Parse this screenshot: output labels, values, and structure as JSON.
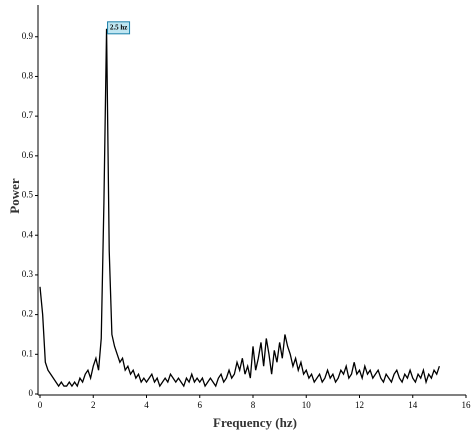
{
  "chart_data": {
    "type": "line",
    "x_label": "Frequency (hz)",
    "y_label": "Power",
    "annotation": "2.5 hz",
    "x": [
      0,
      0.1,
      0.2,
      0.3,
      0.4,
      0.5,
      0.6,
      0.7,
      0.8,
      0.9,
      1,
      1.1,
      1.2,
      1.3,
      1.4,
      1.5,
      1.6,
      1.7,
      1.8,
      1.9,
      2,
      2.1,
      2.2,
      2.3,
      2.4,
      2.5,
      2.6,
      2.7,
      2.8,
      2.9,
      3,
      3.1,
      3.2,
      3.3,
      3.4,
      3.5,
      3.6,
      3.7,
      3.8,
      3.9,
      4,
      4.1,
      4.2,
      4.3,
      4.4,
      4.5,
      4.6,
      4.7,
      4.8,
      4.9,
      5,
      5.1,
      5.2,
      5.3,
      5.4,
      5.5,
      5.6,
      5.7,
      5.8,
      5.9,
      6,
      6.1,
      6.2,
      6.3,
      6.4,
      6.5,
      6.6,
      6.7,
      6.8,
      6.9,
      7,
      7.1,
      7.2,
      7.3,
      7.4,
      7.5,
      7.6,
      7.7,
      7.8,
      7.9,
      8,
      8.1,
      8.2,
      8.3,
      8.4,
      8.5,
      8.6,
      8.7,
      8.8,
      8.9,
      9,
      9.1,
      9.2,
      9.3,
      9.4,
      9.5,
      9.6,
      9.7,
      9.8,
      9.9,
      10,
      10.1,
      10.2,
      10.3,
      10.4,
      10.5,
      10.6,
      10.7,
      10.8,
      10.9,
      11,
      11.1,
      11.2,
      11.3,
      11.4,
      11.5,
      11.6,
      11.7,
      11.8,
      11.9,
      12,
      12.1,
      12.2,
      12.3,
      12.4,
      12.5,
      12.6,
      12.7,
      12.8,
      12.9,
      13,
      13.1,
      13.2,
      13.3,
      13.4,
      13.5,
      13.6,
      13.7,
      13.8,
      13.9,
      14,
      14.1,
      14.2,
      14.3,
      14.4,
      14.5,
      14.6,
      14.7,
      14.8,
      14.9,
      15
    ],
    "series": [
      {
        "color": "#000000",
        "values": [
          0.27,
          0.2,
          0.08,
          0.06,
          0.05,
          0.04,
          0.03,
          0.02,
          0.03,
          0.02,
          0.02,
          0.03,
          0.02,
          0.03,
          0.02,
          0.04,
          0.03,
          0.05,
          0.06,
          0.04,
          0.07,
          0.09,
          0.06,
          0.14,
          0.48,
          0.92,
          0.36,
          0.15,
          0.12,
          0.1,
          0.08,
          0.09,
          0.06,
          0.07,
          0.05,
          0.06,
          0.04,
          0.05,
          0.03,
          0.04,
          0.03,
          0.04,
          0.05,
          0.03,
          0.04,
          0.02,
          0.03,
          0.04,
          0.03,
          0.05,
          0.04,
          0.03,
          0.04,
          0.03,
          0.02,
          0.04,
          0.03,
          0.05,
          0.03,
          0.04,
          0.03,
          0.04,
          0.02,
          0.03,
          0.04,
          0.03,
          0.02,
          0.04,
          0.05,
          0.03,
          0.04,
          0.06,
          0.04,
          0.05,
          0.08,
          0.06,
          0.09,
          0.05,
          0.07,
          0.04,
          0.12,
          0.06,
          0.09,
          0.13,
          0.07,
          0.14,
          0.1,
          0.05,
          0.11,
          0.08,
          0.13,
          0.09,
          0.15,
          0.12,
          0.1,
          0.07,
          0.09,
          0.06,
          0.08,
          0.05,
          0.06,
          0.04,
          0.05,
          0.03,
          0.04,
          0.05,
          0.03,
          0.04,
          0.06,
          0.04,
          0.05,
          0.03,
          0.04,
          0.06,
          0.05,
          0.07,
          0.04,
          0.05,
          0.08,
          0.05,
          0.06,
          0.04,
          0.07,
          0.05,
          0.06,
          0.04,
          0.05,
          0.06,
          0.04,
          0.03,
          0.05,
          0.04,
          0.03,
          0.05,
          0.06,
          0.04,
          0.03,
          0.05,
          0.04,
          0.06,
          0.04,
          0.03,
          0.05,
          0.04,
          0.06,
          0.03,
          0.05,
          0.04,
          0.06,
          0.05,
          0.07
        ]
      }
    ],
    "xlim": [
      0,
      16
    ],
    "xticks": [
      0,
      2,
      4,
      6,
      8,
      10,
      12,
      14,
      16
    ],
    "ylim": [
      0,
      0.98
    ],
    "yticks": [
      0,
      0.1,
      0.2,
      0.3,
      0.4,
      0.5,
      0.6,
      0.7,
      0.8,
      0.9
    ]
  }
}
